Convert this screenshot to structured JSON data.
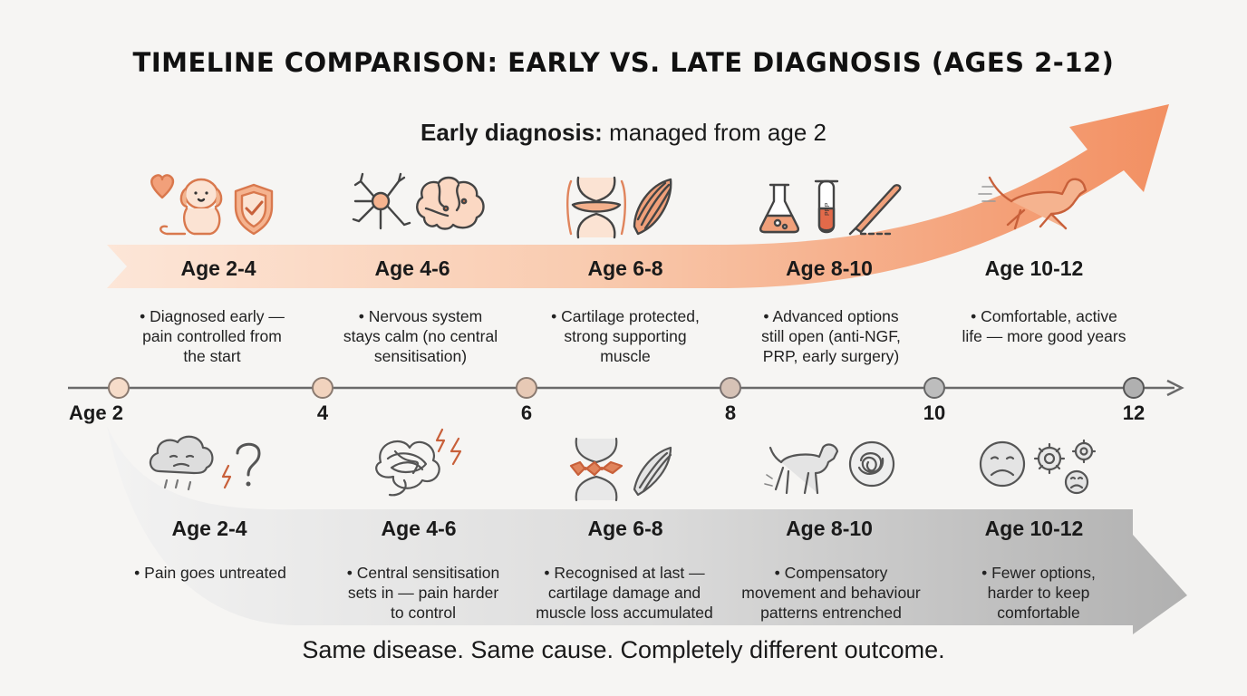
{
  "title": "TIMELINE COMPARISON: EARLY VS. LATE DIAGNOSIS (AGES 2-12)",
  "early": {
    "heading_bold": "Early diagnosis:",
    "heading_rest": " managed from age 2",
    "stages": [
      {
        "label": "Age 2-4",
        "lines": [
          "• Diagnosed early —",
          "pain controlled from",
          "the start"
        ]
      },
      {
        "label": "Age 4-6",
        "lines": [
          "• Nervous system",
          "stays calm (no central",
          "sensitisation)"
        ]
      },
      {
        "label": "Age 6-8",
        "lines": [
          "• Cartilage protected,",
          "strong supporting",
          "muscle"
        ]
      },
      {
        "label": "Age 8-10",
        "lines": [
          "• Advanced options",
          "still open (anti-NGF,",
          "PRP, early surgery)"
        ]
      },
      {
        "label": "Age 10-12",
        "lines": [
          "• Comfortable, active",
          "life — more good years"
        ]
      }
    ]
  },
  "late": {
    "stages": [
      {
        "label": "Age 2-4",
        "lines": [
          "• Pain goes untreated"
        ]
      },
      {
        "label": "Age 4-6",
        "lines": [
          "• Central sensitisation",
          "sets in — pain harder",
          "to control"
        ]
      },
      {
        "label": "Age 6-8",
        "lines": [
          "• Recognised at last —",
          "cartilage damage and",
          "muscle loss accumulated"
        ]
      },
      {
        "label": "Age 8-10",
        "lines": [
          "• Compensatory",
          "movement and behaviour",
          "patterns entrenched"
        ]
      },
      {
        "label": "Age 10-12",
        "lines": [
          "• Fewer options,",
          "harder to keep",
          "comfortable"
        ]
      }
    ]
  },
  "axis": {
    "ticks": [
      "Age 2",
      "4",
      "6",
      "8",
      "10",
      "12"
    ]
  },
  "icon_text": {
    "prp_tube": "PRP"
  },
  "icons": {
    "early": [
      [
        "heart-icon",
        "puppy-icon",
        "shield-check-icon"
      ],
      [
        "neuron-icon",
        "brain-icon"
      ],
      [
        "healthy-joint-icon",
        "muscle-icon"
      ],
      [
        "flask-icon",
        "prp-tube-icon",
        "scalpel-icon"
      ],
      [
        "running-dog-icon"
      ]
    ],
    "late": [
      [
        "storm-cloud-icon",
        "lightning-question-icon"
      ],
      [
        "tangled-nerves-icon"
      ],
      [
        "damaged-joint-icon",
        "muscle-fiber-icon"
      ],
      [
        "limping-dog-icon",
        "scribble-circle-icon"
      ],
      [
        "sad-face-icon",
        "gears-icon"
      ]
    ]
  },
  "footer": "Same disease. Same cause. Completely different outcome.",
  "colors": {
    "early_arrow": "#f2a07a",
    "late_arrow": "#bdbdbd",
    "icon_orange": "#e0845c",
    "icon_gray": "#555555"
  }
}
